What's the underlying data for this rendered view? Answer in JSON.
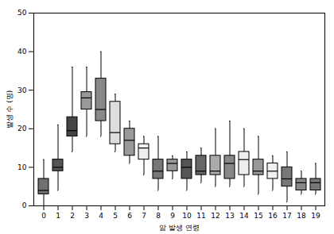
{
  "chart_data": {
    "type": "box",
    "x_label": "암 발생 연령",
    "y_label": "발생 수 (명)",
    "categories": [
      0,
      1,
      2,
      3,
      4,
      5,
      6,
      7,
      8,
      9,
      10,
      11,
      12,
      13,
      14,
      15,
      16,
      17,
      18,
      19
    ],
    "min": [
      0,
      4,
      14,
      18,
      18,
      14,
      11,
      8,
      4,
      7,
      4,
      6,
      5,
      5,
      5,
      3,
      4,
      1,
      3,
      3
    ],
    "q1": [
      3,
      9,
      18,
      25,
      22,
      16,
      13,
      12,
      7,
      9,
      7,
      8,
      8,
      7,
      8,
      8,
      7,
      5,
      4,
      4
    ],
    "median": [
      4,
      10,
      19.5,
      28,
      25,
      19,
      17,
      15,
      9,
      11,
      10,
      9,
      9,
      11,
      12,
      9,
      9,
      7,
      6,
      6
    ],
    "q3": [
      7,
      12,
      23,
      29.5,
      33,
      27,
      20,
      16,
      12,
      12,
      12,
      13,
      13,
      13,
      14,
      12,
      11,
      10,
      7,
      7
    ],
    "max": [
      12,
      21,
      36,
      36,
      40,
      29,
      22,
      18,
      18,
      13,
      14,
      15,
      20,
      22,
      20,
      18,
      13,
      14,
      9,
      11
    ],
    "colors": [
      "#707070",
      "#555555",
      "#444444",
      "#999999",
      "#888888",
      "#dddddd",
      "#999999",
      "#eeeeee",
      "#777777",
      "#999999",
      "#555555",
      "#666666",
      "#aaaaaa",
      "#888888",
      "#eeeeee",
      "#999999",
      "#f0f0f0",
      "#777777",
      "#888888",
      "#777777"
    ],
    "ylim": [
      0,
      50
    ],
    "yticks": [
      0,
      10,
      20,
      30,
      40,
      50
    ]
  }
}
